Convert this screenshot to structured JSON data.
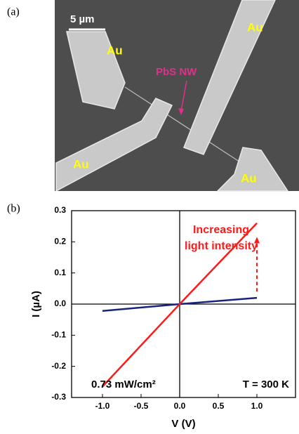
{
  "panel_a": {
    "label": "(a)",
    "scale_bar": "5 µm",
    "electrode_labels": [
      "Au",
      "Au",
      "Au",
      "Au"
    ],
    "nanowire_label": "PbS NW"
  },
  "panel_b_label": "(b)",
  "chart_data": {
    "type": "line",
    "x_label": "V (V)",
    "y_label": "I (µA)",
    "x": [
      -1,
      0,
      1
    ],
    "series": [
      {
        "color": "#1a237e",
        "values": [
          -0.022,
          0,
          0.02
        ]
      },
      {
        "color": "#ff1a1a",
        "values": [
          -0.265,
          0,
          0.26
        ]
      }
    ],
    "xlim": [
      -1.4,
      1.5
    ],
    "xticks": [
      {
        "value": -1,
        "label": "-1.0"
      },
      -0.5,
      {
        "value": 0,
        "label": "0.0"
      },
      0.5,
      {
        "value": 1,
        "label": "1.0"
      }
    ],
    "ylim": [
      -0.3,
      0.3
    ],
    "yticks": [
      -0.3,
      -0.2,
      -0.1,
      {
        "value": 0,
        "label": "0.0"
      },
      0.1,
      0.2,
      0.3
    ],
    "annotations": {
      "arrow_text": [
        "Increasing",
        "light intensity"
      ],
      "power": "0.73 mW/cm²",
      "temperature": "T = 300 K"
    }
  }
}
